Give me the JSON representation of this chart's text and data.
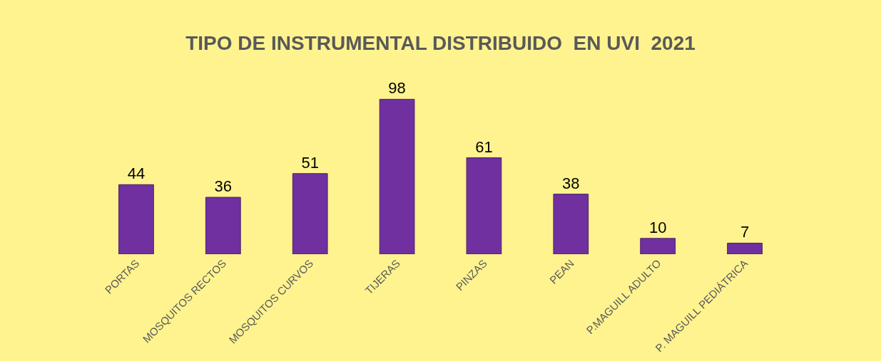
{
  "chart_data": {
    "type": "bar",
    "title": "TIPO DE INSTRUMENTAL DISTRIBUIDO  EN UVI  2021",
    "categories": [
      "PORTAS",
      "MOSQUITOS RECTOS",
      "MOSQUITOS CURVOS",
      "TIJERAS",
      "PINZAS",
      "PEAN",
      "P.MAGUILL ADULTO",
      "P. MAGUILL PEDIÁTRICA"
    ],
    "values": [
      44,
      36,
      51,
      98,
      61,
      38,
      10,
      7
    ],
    "color": "#7030a0",
    "data_labels": true,
    "tick_labels": "x",
    "grid": false
  }
}
